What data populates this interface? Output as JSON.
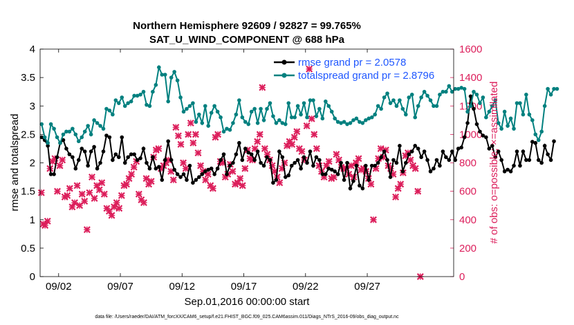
{
  "chart_data": {
    "type": "line",
    "title_line1": "Northern Hemisphere 92609 / 92827 = 99.765%",
    "title_line2": "SAT_U_WIND_COMPONENT @ 688 hPa",
    "xlabel": "Sep.01,2016 00:00:00 start",
    "ylabel_left": "rmse and totalspread",
    "ylabel_right": "# of obs: o=possible; ×=assimilated",
    "xlim": [
      0,
      33.5
    ],
    "ylim_left": [
      0,
      4
    ],
    "ylim_right": [
      0,
      1600
    ],
    "x_ticks": [
      {
        "x": 1.5,
        "label": "09/02"
      },
      {
        "x": 6.5,
        "label": "09/07"
      },
      {
        "x": 11.5,
        "label": "09/12"
      },
      {
        "x": 16.5,
        "label": "09/17"
      },
      {
        "x": 21.5,
        "label": "09/22"
      },
      {
        "x": 26.5,
        "label": "09/27"
      }
    ],
    "y_ticks_left": [
      {
        "v": 0,
        "label": "0"
      },
      {
        "v": 0.5,
        "label": "0.5"
      },
      {
        "v": 1,
        "label": "1"
      },
      {
        "v": 1.5,
        "label": "1.5"
      },
      {
        "v": 2,
        "label": "2"
      },
      {
        "v": 2.5,
        "label": "2.5"
      },
      {
        "v": 3,
        "label": "3"
      },
      {
        "v": 3.5,
        "label": "3.5"
      },
      {
        "v": 4,
        "label": "4"
      }
    ],
    "y_ticks_right": [
      {
        "v": 0,
        "label": "0"
      },
      {
        "v": 200,
        "label": "200"
      },
      {
        "v": 400,
        "label": "400"
      },
      {
        "v": 600,
        "label": "600"
      },
      {
        "v": 800,
        "label": "800"
      },
      {
        "v": 1000,
        "label": "1000"
      },
      {
        "v": 1200,
        "label": "1200"
      },
      {
        "v": 1400,
        "label": "1400"
      },
      {
        "v": 1600,
        "label": "1600"
      }
    ],
    "legend_location": "top-right",
    "series": [
      {
        "name": "rmse grand pr = 2.0578",
        "axis": "left",
        "color": "#000000",
        "marker": "circle",
        "x_start": 0.125,
        "x_step": 0.25,
        "values": [
          2.45,
          2.4,
          2.3,
          1.8,
          1.8,
          2.1,
          2.35,
          2.4,
          2.25,
          2.15,
          2.1,
          1.9,
          2.05,
          2.25,
          2.2,
          1.95,
          2.2,
          2.28,
          1.9,
          2.0,
          2.2,
          2.48,
          2.45,
          2.05,
          2.15,
          2.1,
          2.45,
          2.0,
          2.1,
          2.15,
          2.15,
          2.05,
          2.08,
          2.25,
          2.0,
          1.9,
          2.1,
          1.9,
          1.93,
          1.7,
          2.05,
          2.38,
          2.05,
          1.88,
          1.8,
          1.75,
          1.8,
          1.7,
          1.95,
          1.65,
          1.7,
          1.75,
          1.8,
          1.85,
          1.88,
          1.9,
          1.8,
          1.9,
          2.05,
          2.15,
          1.8,
          1.95,
          2.0,
          2.15,
          2.35,
          2.05,
          2.25,
          2.18,
          2.15,
          2.05,
          2.2,
          2.0,
          1.95,
          2.1,
          2.05,
          1.65,
          1.7,
          2.2,
          2.1,
          1.75,
          1.78,
          1.95,
          2.0,
          2.05,
          1.9,
          2.1,
          2.0,
          2.2,
          1.95,
          2.1,
          2.05,
          1.8,
          1.8,
          1.9,
          1.88,
          1.85,
          1.8,
          2.0,
          1.7,
          2.0,
          1.55,
          1.68,
          1.95,
          1.6,
          1.55,
          1.95,
          1.7,
          1.95,
          1.95,
          2.0,
          2.1,
          2.2,
          2.05,
          1.75,
          2.05,
          2.0,
          2.3,
          1.85,
          2.0,
          2.15,
          2.2,
          2.3,
          2.25,
          2.1,
          2.2,
          2.05,
          1.85,
          1.9,
          2.05,
          1.95,
          2.2,
          2.1,
          2.05,
          2.2,
          2.05,
          2.25,
          2.27,
          2.45,
          2.7,
          3.17,
          2.95,
          2.68,
          2.55,
          2.48,
          2.45,
          2.25,
          2.3,
          2.1,
          2.2,
          2.05,
          1.85,
          1.88,
          1.85,
          1.95,
          2.2,
          1.95,
          2.2,
          2.05,
          2.05,
          2.37,
          2.35,
          2.05,
          2.0,
          2.3,
          2.15,
          2.05,
          2.38
        ]
      },
      {
        "name": "totalspread grand pr = 2.8796",
        "axis": "left",
        "color": "#00807f",
        "marker": "circle",
        "x_start": 0.125,
        "x_step": 0.25,
        "values": [
          2.68,
          2.45,
          2.35,
          2.68,
          2.6,
          2.45,
          2.35,
          2.5,
          2.55,
          2.55,
          2.6,
          2.5,
          2.38,
          2.45,
          2.55,
          2.65,
          2.5,
          2.75,
          2.7,
          2.65,
          2.6,
          2.95,
          2.92,
          2.85,
          3.1,
          3.05,
          3.15,
          3.0,
          3.05,
          3.08,
          3.18,
          3.18,
          3.2,
          3.25,
          3.02,
          3.0,
          3.25,
          3.37,
          3.68,
          3.55,
          3.55,
          3.08,
          3.5,
          3.6,
          3.45,
          3.15,
          2.9,
          2.95,
          3.0,
          3.05,
          2.72,
          2.85,
          2.7,
          3.0,
          2.65,
          2.88,
          3.0,
          2.9,
          2.8,
          2.55,
          2.6,
          2.58,
          2.7,
          2.85,
          3.1,
          2.8,
          2.72,
          2.68,
          2.9,
          2.95,
          2.7,
          2.95,
          2.75,
          2.95,
          3.05,
          2.82,
          2.7,
          2.75,
          2.7,
          2.68,
          3.05,
          2.8,
          2.8,
          3.0,
          2.85,
          3.05,
          2.8,
          3.1,
          3.1,
          2.82,
          2.95,
          2.78,
          3.08,
          3.0,
          2.9,
          2.78,
          2.72,
          2.7,
          2.72,
          2.68,
          2.7,
          2.75,
          2.78,
          2.72,
          2.7,
          2.75,
          2.78,
          2.8,
          2.85,
          3.0,
          2.95,
          3.15,
          3.22,
          3.05,
          3.1,
          3.0,
          3.1,
          2.95,
          2.85,
          3.15,
          3.2,
          2.8,
          3.0,
          3.15,
          3.25,
          3.18,
          3.1,
          3.0,
          3.0,
          3.2,
          3.25,
          3.25,
          3.35,
          3.25,
          3.3,
          3.3,
          3.32,
          3.3,
          2.9,
          3.0,
          3.25,
          3.2,
          3.05,
          3.15,
          2.8,
          2.9,
          3.0,
          3.1,
          2.7,
          2.6,
          2.9,
          2.65,
          2.78,
          2.6,
          3.05,
          3.05,
          2.85,
          3.2,
          2.85,
          2.75,
          2.5,
          2.4,
          2.55,
          3.0,
          3.3,
          3.2,
          3.3,
          3.3
        ]
      }
    ],
    "scatter": {
      "name": "assimilated",
      "axis": "right",
      "color": "#dc1e5b",
      "marker": "x",
      "points": [
        [
          0.1,
          590
        ],
        [
          0.25,
          370
        ],
        [
          0.4,
          360
        ],
        [
          0.6,
          390
        ],
        [
          0.8,
          760
        ],
        [
          1.0,
          810
        ],
        [
          1.2,
          830
        ],
        [
          1.4,
          600
        ],
        [
          1.6,
          780
        ],
        [
          1.8,
          820
        ],
        [
          2.0,
          560
        ],
        [
          2.2,
          570
        ],
        [
          2.4,
          620
        ],
        [
          2.6,
          490
        ],
        [
          2.8,
          520
        ],
        [
          3.0,
          640
        ],
        [
          3.2,
          500
        ],
        [
          3.4,
          580
        ],
        [
          3.6,
          530
        ],
        [
          3.8,
          330
        ],
        [
          4.0,
          590
        ],
        [
          4.2,
          700
        ],
        [
          4.4,
          550
        ],
        [
          4.6,
          640
        ],
        [
          4.8,
          610
        ],
        [
          5.0,
          660
        ],
        [
          5.2,
          580
        ],
        [
          5.4,
          480
        ],
        [
          5.6,
          460
        ],
        [
          5.8,
          430
        ],
        [
          6.0,
          490
        ],
        [
          6.2,
          520
        ],
        [
          6.4,
          480
        ],
        [
          6.6,
          570
        ],
        [
          6.8,
          640
        ],
        [
          7.0,
          650
        ],
        [
          7.2,
          690
        ],
        [
          7.4,
          720
        ],
        [
          7.6,
          770
        ],
        [
          7.8,
          810
        ],
        [
          8.0,
          580
        ],
        [
          8.2,
          540
        ],
        [
          8.4,
          520
        ],
        [
          8.6,
          690
        ],
        [
          8.8,
          650
        ],
        [
          9.0,
          670
        ],
        [
          9.2,
          840
        ],
        [
          9.4,
          890
        ],
        [
          9.6,
          900
        ],
        [
          9.8,
          760
        ],
        [
          10.0,
          780
        ],
        [
          10.2,
          800
        ],
        [
          10.4,
          820
        ],
        [
          10.6,
          740
        ],
        [
          10.8,
          680
        ],
        [
          11.0,
          1050
        ],
        [
          11.2,
          990
        ],
        [
          11.4,
          930
        ],
        [
          11.6,
          800
        ],
        [
          11.8,
          760
        ],
        [
          12.0,
          1000
        ],
        [
          12.2,
          1080
        ],
        [
          12.4,
          940
        ],
        [
          12.6,
          1000
        ],
        [
          12.8,
          870
        ],
        [
          13.0,
          780
        ],
        [
          13.2,
          740
        ],
        [
          13.4,
          680
        ],
        [
          13.6,
          720
        ],
        [
          13.8,
          640
        ],
        [
          14.0,
          620
        ],
        [
          14.2,
          980
        ],
        [
          14.4,
          1000
        ],
        [
          14.6,
          810
        ],
        [
          14.8,
          800
        ],
        [
          15.0,
          700
        ],
        [
          15.2,
          720
        ],
        [
          15.4,
          790
        ],
        [
          15.6,
          740
        ],
        [
          15.8,
          650
        ],
        [
          16.0,
          660
        ],
        [
          16.2,
          690
        ],
        [
          16.4,
          640
        ],
        [
          16.6,
          760
        ],
        [
          16.8,
          890
        ],
        [
          17.0,
          830
        ],
        [
          17.2,
          820
        ],
        [
          17.4,
          900
        ],
        [
          17.6,
          950
        ],
        [
          17.8,
          1000
        ],
        [
          18.0,
          1330
        ],
        [
          18.2,
          900
        ],
        [
          18.4,
          860
        ],
        [
          18.6,
          820
        ],
        [
          18.8,
          780
        ],
        [
          19.0,
          740
        ],
        [
          19.2,
          700
        ],
        [
          19.4,
          660
        ],
        [
          19.6,
          760
        ],
        [
          19.8,
          800
        ],
        [
          20.0,
          920
        ],
        [
          20.2,
          950
        ],
        [
          20.4,
          930
        ],
        [
          20.6,
          980
        ],
        [
          20.8,
          1020
        ],
        [
          21.0,
          900
        ],
        [
          21.2,
          880
        ],
        [
          21.4,
          820
        ],
        [
          21.6,
          1060
        ],
        [
          21.8,
          1460
        ],
        [
          22.0,
          1110
        ],
        [
          22.2,
          1000
        ],
        [
          22.4,
          900
        ],
        [
          22.6,
          780
        ],
        [
          22.8,
          740
        ],
        [
          23.0,
          700
        ],
        [
          23.2,
          780
        ],
        [
          23.4,
          810
        ],
        [
          23.6,
          690
        ],
        [
          23.8,
          700
        ],
        [
          24.0,
          860
        ],
        [
          24.2,
          820
        ],
        [
          24.4,
          770
        ],
        [
          24.6,
          760
        ],
        [
          24.8,
          760
        ],
        [
          25.0,
          720
        ],
        [
          25.2,
          780
        ],
        [
          25.4,
          700
        ],
        [
          25.6,
          800
        ],
        [
          25.8,
          830
        ],
        [
          26.0,
          750
        ],
        [
          26.2,
          760
        ],
        [
          26.4,
          740
        ],
        [
          26.6,
          690
        ],
        [
          26.8,
          650
        ],
        [
          27.0,
          400
        ],
        [
          27.2,
          760
        ],
        [
          27.4,
          830
        ],
        [
          27.6,
          900
        ],
        [
          27.8,
          840
        ],
        [
          28.0,
          890
        ],
        [
          28.2,
          780
        ],
        [
          28.4,
          760
        ],
        [
          28.6,
          720
        ],
        [
          28.8,
          560
        ],
        [
          29.0,
          620
        ],
        [
          29.2,
          650
        ],
        [
          29.4,
          730
        ],
        [
          29.6,
          850
        ],
        [
          29.8,
          870
        ],
        [
          30.0,
          820
        ],
        [
          30.2,
          780
        ],
        [
          30.4,
          760
        ],
        [
          30.6,
          600
        ],
        [
          30.8,
          0
        ]
      ]
    }
  },
  "footnote": "data file: /Users/raeder/DAI/ATM_forcXX/CAM6_setup/f.e21.FHIST_BGC.f09_025.CAM6assim.011/Diags_NTrS_2016-09/obs_diag_output.nc"
}
